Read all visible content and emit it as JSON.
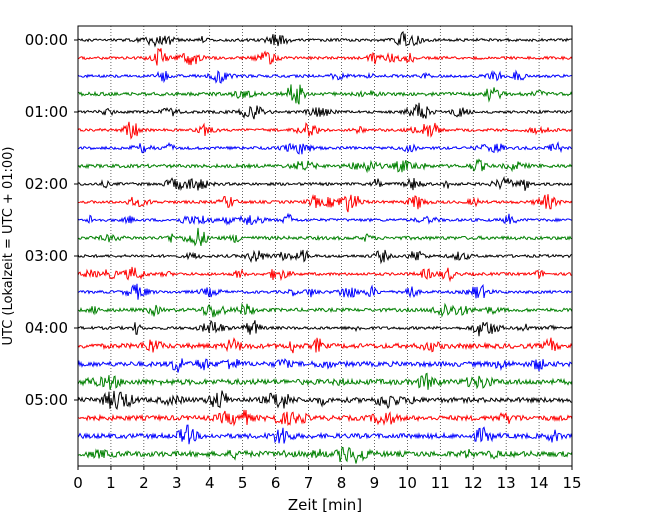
{
  "chart_data": {
    "type": "line",
    "title": "",
    "xlabel": "Zeit  [min]",
    "ylabel": "UTC (Lokalzeit = UTC + 01:00)",
    "xlim": [
      0,
      15
    ],
    "xticks": [
      "0",
      "1",
      "2",
      "3",
      "4",
      "5",
      "6",
      "7",
      "8",
      "9",
      "10",
      "11",
      "12",
      "13",
      "14",
      "15"
    ],
    "yticks": [
      {
        "label": "00:00",
        "row": 0
      },
      {
        "label": "01:00",
        "row": 4
      },
      {
        "label": "02:00",
        "row": 8
      },
      {
        "label": "03:00",
        "row": 12
      },
      {
        "label": "04:00",
        "row": 16
      },
      {
        "label": "05:00",
        "row": 20
      }
    ],
    "row_interval_minutes": 15,
    "row_count": 24,
    "color_cycle": [
      "#000000",
      "#ff0000",
      "#0000ff",
      "#008000"
    ],
    "vertical_grid": "dotted",
    "seismogram_rows": [
      {
        "start": "00:00"
      },
      {
        "start": "00:15"
      },
      {
        "start": "00:30"
      },
      {
        "start": "00:45"
      },
      {
        "start": "01:00"
      },
      {
        "start": "01:15"
      },
      {
        "start": "01:30"
      },
      {
        "start": "01:45"
      },
      {
        "start": "02:00"
      },
      {
        "start": "02:15"
      },
      {
        "start": "02:30"
      },
      {
        "start": "02:45"
      },
      {
        "start": "03:00"
      },
      {
        "start": "03:15"
      },
      {
        "start": "03:30"
      },
      {
        "start": "03:45"
      },
      {
        "start": "04:00"
      },
      {
        "start": "04:15"
      },
      {
        "start": "04:30"
      },
      {
        "start": "04:45"
      },
      {
        "start": "05:00"
      },
      {
        "start": "05:15"
      },
      {
        "start": "05:30"
      },
      {
        "start": "05:45"
      }
    ]
  }
}
